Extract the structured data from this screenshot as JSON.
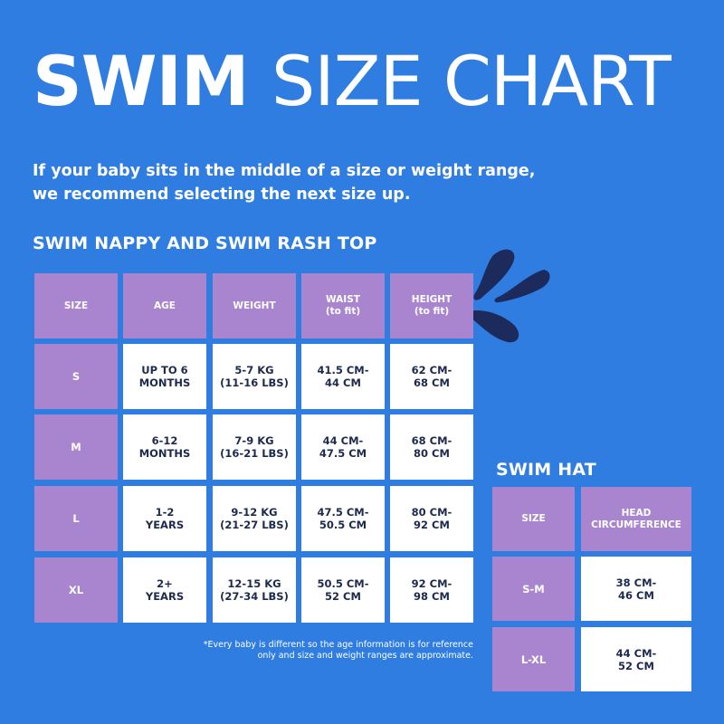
{
  "title": {
    "bold": "SWIM",
    "light": "SIZE CHART"
  },
  "intro": [
    "If your baby sits in the middle of a size or weight range,",
    "we recommend selecting the next size up."
  ],
  "nappy_section": {
    "heading": "SWIM NAPPY AND SWIM RASH TOP",
    "headers": [
      [
        "SIZE"
      ],
      [
        "AGE"
      ],
      [
        "WEIGHT"
      ],
      [
        "WAIST",
        "(to fit)"
      ],
      [
        "HEIGHT",
        "(to fit)"
      ]
    ],
    "rows": [
      [
        [
          "S"
        ],
        [
          "UP TO 6",
          "MONTHS"
        ],
        [
          "5-7 KG",
          "(11-16 LBS)"
        ],
        [
          "41.5 CM-",
          "44 CM"
        ],
        [
          "62 CM-",
          "68 CM"
        ]
      ],
      [
        [
          "M"
        ],
        [
          "6-12",
          "MONTHS"
        ],
        [
          "7-9 KG",
          "(16-21 LBS)"
        ],
        [
          "44 CM-",
          "47.5 CM"
        ],
        [
          "68 CM-",
          "80 CM"
        ]
      ],
      [
        [
          "L"
        ],
        [
          "1-2",
          "YEARS"
        ],
        [
          "9-12 KG",
          "(21-27 LBS)"
        ],
        [
          "47.5 CM-",
          "50.5 CM"
        ],
        [
          "80 CM-",
          "92 CM"
        ]
      ],
      [
        [
          "XL"
        ],
        [
          "2+",
          "YEARS"
        ],
        [
          "12-15 KG",
          "(27-34 LBS)"
        ],
        [
          "50.5 CM-",
          "52 CM"
        ],
        [
          "92 CM-",
          "98 CM"
        ]
      ]
    ],
    "footnote": [
      "*Every baby is different so the age information is for reference",
      "only and size and weight ranges are approximate."
    ]
  },
  "hat_section": {
    "heading": "SWIM HAT",
    "headers": [
      [
        "SIZE"
      ],
      [
        "HEAD",
        "CIRCUMFERENCE"
      ]
    ],
    "rows": [
      [
        [
          "S-M"
        ],
        [
          "38 CM-",
          "46 CM"
        ]
      ],
      [
        [
          "L-XL"
        ],
        [
          "44 CM-",
          "52 CM"
        ]
      ]
    ]
  },
  "colors": {
    "background": "#2f7de1",
    "header_cell": "#a985cf",
    "body_cell": "#ffffff",
    "body_text": "#1d2a4d",
    "splash": "#1d2a5c"
  },
  "decoration": "water-splash-icon"
}
